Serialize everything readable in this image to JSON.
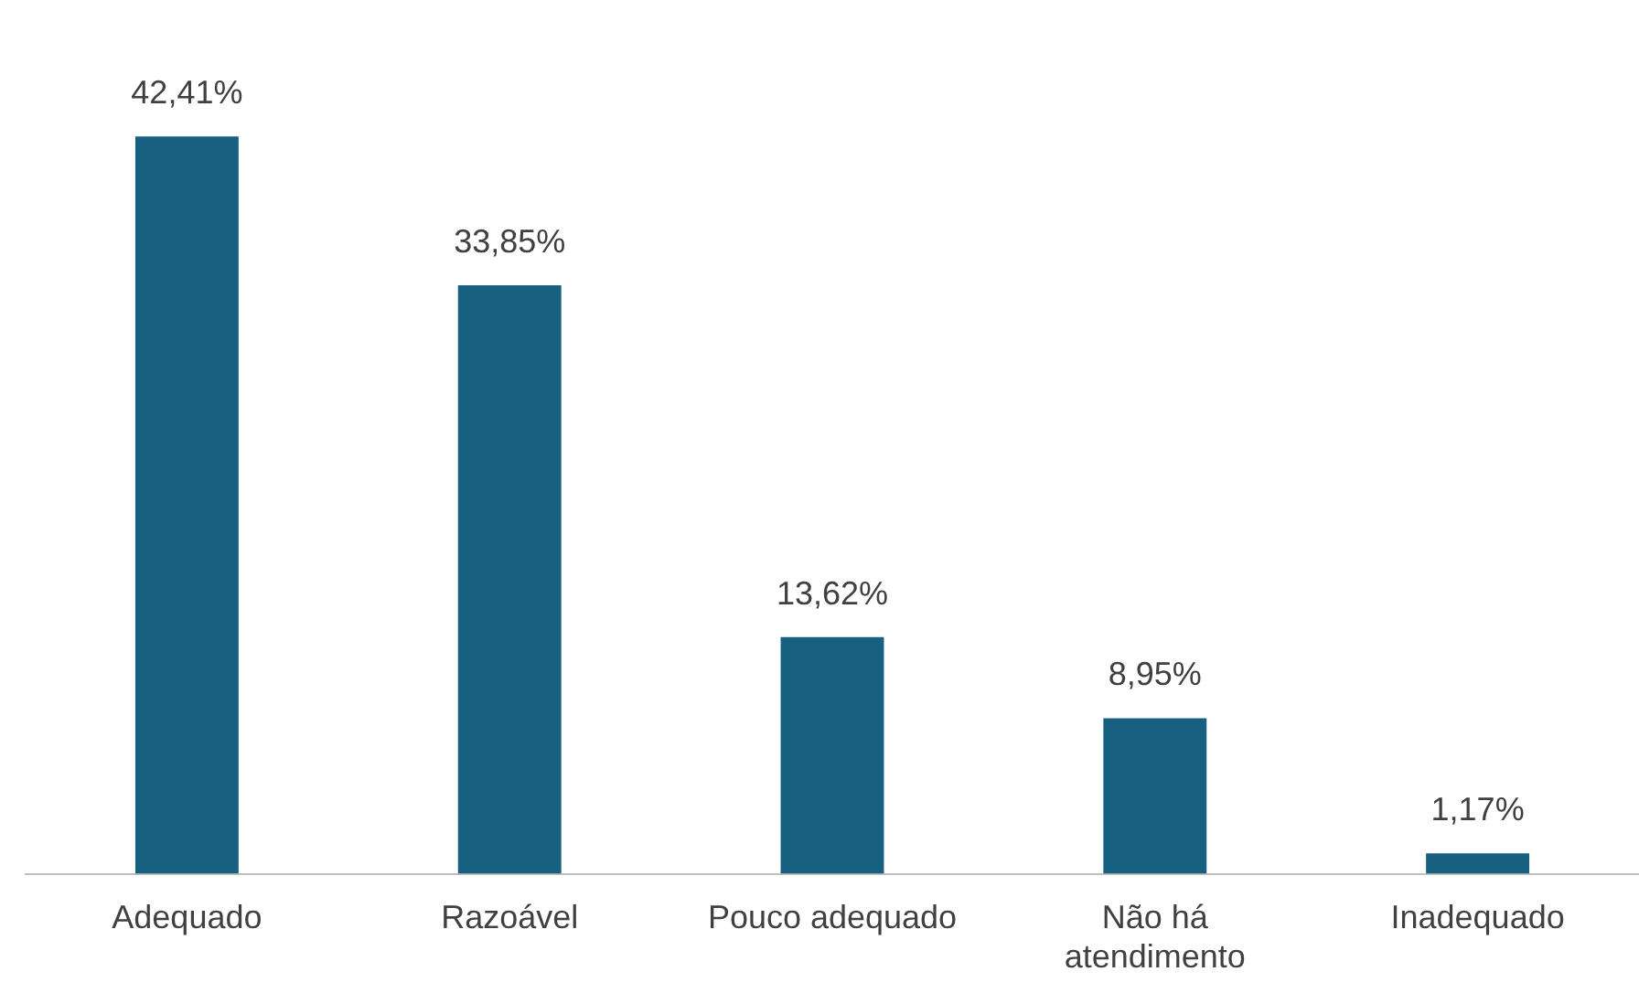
{
  "chart_data": {
    "type": "bar",
    "categories": [
      "Adequado",
      "Razoável",
      "Pouco adequado",
      "Não há atendimento",
      "Inadequado"
    ],
    "values": [
      42.41,
      33.85,
      13.62,
      8.95,
      1.17
    ],
    "value_labels": [
      "42,41%",
      "33,85%",
      "13,62%",
      "8,95%",
      "1,17%"
    ],
    "color": "#17607f",
    "relative": false,
    "grid": false,
    "legend": false
  }
}
